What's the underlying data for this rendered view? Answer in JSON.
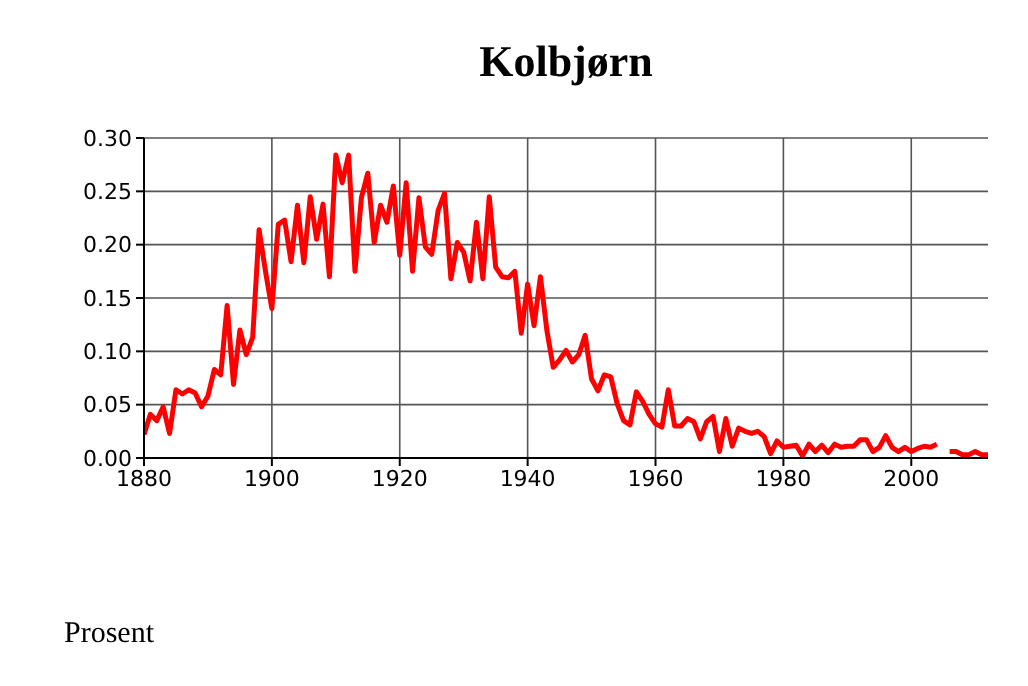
{
  "chart_data": {
    "type": "line",
    "title": "Kolbjørn",
    "ylabel": "Prosent",
    "x": [
      1880,
      1881,
      1882,
      1883,
      1884,
      1885,
      1886,
      1887,
      1888,
      1889,
      1890,
      1891,
      1892,
      1893,
      1894,
      1895,
      1896,
      1897,
      1898,
      1899,
      1900,
      1901,
      1902,
      1903,
      1904,
      1905,
      1906,
      1907,
      1908,
      1909,
      1910,
      1911,
      1912,
      1913,
      1914,
      1915,
      1916,
      1917,
      1918,
      1919,
      1920,
      1921,
      1922,
      1923,
      1924,
      1925,
      1926,
      1927,
      1928,
      1929,
      1930,
      1931,
      1932,
      1933,
      1934,
      1935,
      1936,
      1937,
      1938,
      1939,
      1940,
      1941,
      1942,
      1943,
      1944,
      1945,
      1946,
      1947,
      1948,
      1949,
      1950,
      1951,
      1952,
      1953,
      1954,
      1955,
      1956,
      1957,
      1958,
      1959,
      1960,
      1961,
      1962,
      1963,
      1964,
      1965,
      1966,
      1967,
      1968,
      1969,
      1970,
      1971,
      1972,
      1973,
      1974,
      1975,
      1976,
      1977,
      1978,
      1979,
      1980,
      1981,
      1982,
      1983,
      1984,
      1985,
      1986,
      1987,
      1988,
      1989,
      1990,
      1991,
      1992,
      1993,
      1994,
      1995,
      1996,
      1997,
      1998,
      1999,
      2000,
      2001,
      2002,
      2003,
      2004,
      2005,
      2006,
      2007,
      2008,
      2009,
      2010,
      2011,
      2012
    ],
    "series": [
      {
        "color": "#ff0000",
        "values": [
          0.022,
          0.041,
          0.035,
          0.048,
          0.023,
          0.064,
          0.06,
          0.064,
          0.061,
          0.048,
          0.058,
          0.083,
          0.078,
          0.143,
          0.069,
          0.12,
          0.097,
          0.113,
          0.214,
          0.175,
          0.14,
          0.219,
          0.223,
          0.184,
          0.237,
          0.183,
          0.245,
          0.205,
          0.238,
          0.17,
          0.284,
          0.258,
          0.284,
          0.175,
          0.244,
          0.267,
          0.202,
          0.237,
          0.221,
          0.255,
          0.19,
          0.258,
          0.175,
          0.244,
          0.198,
          0.191,
          0.232,
          0.248,
          0.168,
          0.202,
          0.193,
          0.166,
          0.221,
          0.168,
          0.245,
          0.179,
          0.17,
          0.169,
          0.175,
          0.117,
          0.163,
          0.124,
          0.17,
          0.12,
          0.085,
          0.092,
          0.101,
          0.09,
          0.097,
          0.115,
          0.074,
          0.063,
          0.078,
          0.076,
          0.051,
          0.035,
          0.031,
          0.062,
          0.053,
          0.041,
          0.032,
          0.029,
          0.064,
          0.03,
          0.03,
          0.037,
          0.034,
          0.018,
          0.034,
          0.039,
          0.006,
          0.037,
          0.011,
          0.028,
          0.025,
          0.023,
          0.025,
          0.02,
          0.004,
          0.016,
          0.01,
          0.011,
          0.012,
          0.002,
          0.013,
          0.006,
          0.012,
          0.005,
          0.013,
          0.01,
          0.011,
          0.011,
          0.017,
          0.017,
          0.006,
          0.01,
          0.021,
          0.01,
          0.006,
          0.01,
          0.006,
          0.009,
          0.011,
          0.01,
          0.013,
          null,
          0.006,
          0.006,
          0.003,
          0.003,
          0.006,
          0.003,
          0.003
        ]
      }
    ],
    "xlim": [
      1880,
      2012
    ],
    "xticks": [
      1880,
      1900,
      1920,
      1940,
      1960,
      1980,
      2000
    ],
    "ylim": [
      0,
      0.3
    ],
    "yticks": [
      {
        "value": 0,
        "label": "0.00"
      },
      {
        "value": 0.05,
        "label": "0.05"
      },
      {
        "value": 0.1,
        "label": "0.10"
      },
      {
        "value": 0.15,
        "label": "0.15"
      },
      {
        "value": 0.2,
        "label": "0.20"
      },
      {
        "value": 0.25,
        "label": "0.25"
      },
      {
        "value": 0.3,
        "label": "0.30"
      }
    ],
    "grid": true,
    "marker": "none",
    "line_style": "solid",
    "legend": false
  }
}
